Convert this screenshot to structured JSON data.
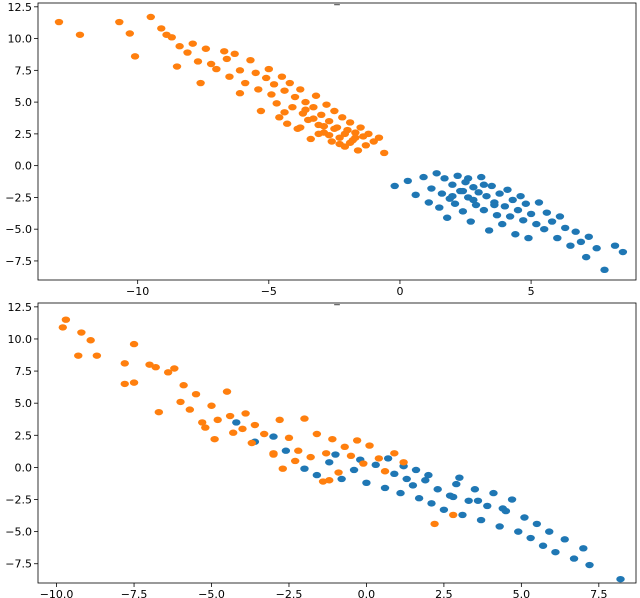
{
  "chart_data": [
    {
      "type": "scatter",
      "title": "_",
      "xlim": [
        -13.8,
        9.0
      ],
      "ylim": [
        -9.0,
        12.8
      ],
      "xticks": [
        -10,
        -5,
        0,
        5
      ],
      "xtick_labels": [
        "−10",
        "−5",
        "0",
        "5"
      ],
      "yticks": [
        -7.5,
        -5.0,
        -2.5,
        0.0,
        2.5,
        5.0,
        7.5,
        10.0,
        12.5
      ],
      "ytick_labels": [
        "−7.5",
        "−5.0",
        "−2.5",
        "0.0",
        "2.5",
        "5.0",
        "7.5",
        "10.0",
        "12.5"
      ],
      "grid": false,
      "series": [
        {
          "color": "#ff7f0e",
          "points": [
            [
              -13.0,
              11.3
            ],
            [
              -12.2,
              10.3
            ],
            [
              -10.7,
              11.3
            ],
            [
              -10.3,
              10.4
            ],
            [
              -10.1,
              8.6
            ],
            [
              -9.5,
              11.7
            ],
            [
              -9.1,
              10.8
            ],
            [
              -8.9,
              10.3
            ],
            [
              -8.7,
              10.1
            ],
            [
              -8.4,
              9.4
            ],
            [
              -8.5,
              7.8
            ],
            [
              -8.1,
              8.9
            ],
            [
              -7.9,
              9.6
            ],
            [
              -7.7,
              8.2
            ],
            [
              -7.6,
              6.5
            ],
            [
              -7.4,
              9.2
            ],
            [
              -7.2,
              8.0
            ],
            [
              -7.0,
              7.6
            ],
            [
              -6.7,
              9.0
            ],
            [
              -6.6,
              8.4
            ],
            [
              -6.5,
              7.0
            ],
            [
              -6.3,
              8.8
            ],
            [
              -6.1,
              7.5
            ],
            [
              -6.1,
              5.7
            ],
            [
              -5.9,
              6.5
            ],
            [
              -5.7,
              8.3
            ],
            [
              -5.5,
              7.3
            ],
            [
              -5.4,
              6.0
            ],
            [
              -5.3,
              4.3
            ],
            [
              -5.1,
              6.9
            ],
            [
              -5.0,
              7.6
            ],
            [
              -4.9,
              5.6
            ],
            [
              -4.8,
              6.4
            ],
            [
              -4.7,
              4.9
            ],
            [
              -4.6,
              3.8
            ],
            [
              -4.5,
              7.0
            ],
            [
              -4.4,
              5.9
            ],
            [
              -4.3,
              3.3
            ],
            [
              -4.2,
              6.5
            ],
            [
              -4.1,
              4.6
            ],
            [
              -4.0,
              5.4
            ],
            [
              -3.9,
              2.9
            ],
            [
              -3.8,
              6.0
            ],
            [
              -3.7,
              4.1
            ],
            [
              -3.6,
              5.0
            ],
            [
              -3.5,
              3.6
            ],
            [
              -3.4,
              2.1
            ],
            [
              -3.3,
              4.6
            ],
            [
              -3.2,
              5.5
            ],
            [
              -3.1,
              3.2
            ],
            [
              -3.0,
              4.0
            ],
            [
              -2.9,
              2.6
            ],
            [
              -2.8,
              4.8
            ],
            [
              -2.7,
              3.5
            ],
            [
              -2.6,
              1.9
            ],
            [
              -2.5,
              4.3
            ],
            [
              -2.4,
              3.0
            ],
            [
              -2.3,
              2.2
            ],
            [
              -2.2,
              3.8
            ],
            [
              -2.1,
              1.5
            ],
            [
              -2.0,
              2.8
            ],
            [
              -1.9,
              3.4
            ],
            [
              -1.8,
              2.0
            ],
            [
              -1.7,
              2.6
            ],
            [
              -1.6,
              1.2
            ],
            [
              -1.5,
              3.0
            ],
            [
              -1.4,
              2.3
            ],
            [
              -1.3,
              1.6
            ],
            [
              -1.2,
              2.5
            ],
            [
              -1.0,
              1.9
            ],
            [
              -0.8,
              2.2
            ],
            [
              -0.6,
              1.0
            ],
            [
              -3.6,
              4.4
            ],
            [
              -3.3,
              3.7
            ],
            [
              -3.1,
              2.5
            ],
            [
              -2.9,
              3.1
            ],
            [
              -2.7,
              2.4
            ],
            [
              -2.5,
              2.9
            ],
            [
              -2.3,
              1.7
            ],
            [
              -2.1,
              2.5
            ],
            [
              -1.9,
              1.8
            ],
            [
              -1.7,
              2.2
            ],
            [
              -3.8,
              3.0
            ],
            [
              -4.4,
              4.2
            ]
          ]
        },
        {
          "color": "#1f77b4",
          "points": [
            [
              -0.2,
              -1.6
            ],
            [
              0.3,
              -1.2
            ],
            [
              0.6,
              -2.3
            ],
            [
              0.9,
              -0.9
            ],
            [
              1.1,
              -2.9
            ],
            [
              1.2,
              -1.8
            ],
            [
              1.4,
              -0.6
            ],
            [
              1.5,
              -3.3
            ],
            [
              1.6,
              -2.2
            ],
            [
              1.7,
              -1.0
            ],
            [
              1.8,
              -4.1
            ],
            [
              1.9,
              -2.6
            ],
            [
              2.0,
              -1.5
            ],
            [
              2.1,
              -3.0
            ],
            [
              2.2,
              -0.8
            ],
            [
              2.3,
              -2.0
            ],
            [
              2.4,
              -3.6
            ],
            [
              2.5,
              -1.3
            ],
            [
              2.6,
              -2.5
            ],
            [
              2.7,
              -4.4
            ],
            [
              2.8,
              -1.7
            ],
            [
              2.9,
              -3.1
            ],
            [
              3.0,
              -2.1
            ],
            [
              3.1,
              -0.9
            ],
            [
              3.2,
              -3.5
            ],
            [
              3.3,
              -2.4
            ],
            [
              3.4,
              -5.1
            ],
            [
              3.5,
              -1.6
            ],
            [
              3.6,
              -2.9
            ],
            [
              3.7,
              -3.9
            ],
            [
              3.8,
              -2.2
            ],
            [
              3.9,
              -4.6
            ],
            [
              4.0,
              -3.2
            ],
            [
              4.1,
              -1.9
            ],
            [
              4.2,
              -4.0
            ],
            [
              4.3,
              -2.7
            ],
            [
              4.4,
              -5.4
            ],
            [
              4.5,
              -3.5
            ],
            [
              4.6,
              -2.4
            ],
            [
              4.7,
              -4.3
            ],
            [
              4.8,
              -3.0
            ],
            [
              4.9,
              -5.7
            ],
            [
              5.0,
              -3.8
            ],
            [
              5.2,
              -4.6
            ],
            [
              5.3,
              -2.9
            ],
            [
              5.5,
              -5.0
            ],
            [
              5.6,
              -3.7
            ],
            [
              5.8,
              -4.4
            ],
            [
              6.0,
              -5.7
            ],
            [
              6.1,
              -4.0
            ],
            [
              6.3,
              -4.9
            ],
            [
              6.5,
              -6.3
            ],
            [
              6.7,
              -5.2
            ],
            [
              6.9,
              -6.0
            ],
            [
              7.1,
              -7.2
            ],
            [
              7.2,
              -5.6
            ],
            [
              7.5,
              -6.5
            ],
            [
              7.8,
              -8.2
            ],
            [
              8.2,
              -6.3
            ],
            [
              8.5,
              -6.8
            ],
            [
              2.4,
              -2.0
            ],
            [
              2.8,
              -2.7
            ],
            [
              3.2,
              -1.5
            ],
            [
              3.6,
              -3.1
            ],
            [
              2.0,
              -2.4
            ],
            [
              2.6,
              -1.0
            ]
          ]
        }
      ]
    },
    {
      "type": "scatter",
      "title": "_",
      "xlim": [
        -10.6,
        8.7
      ],
      "ylim": [
        -9.0,
        12.8
      ],
      "xticks": [
        -10.0,
        -7.5,
        -5.0,
        -2.5,
        0.0,
        2.5,
        5.0,
        7.5
      ],
      "xtick_labels": [
        "−10.0",
        "−7.5",
        "−5.0",
        "−2.5",
        "0.0",
        "2.5",
        "5.0",
        "7.5"
      ],
      "yticks": [
        -7.5,
        -5.0,
        -2.5,
        0.0,
        2.5,
        5.0,
        7.5,
        10.0,
        12.5
      ],
      "ytick_labels": [
        "−7.5",
        "−5.0",
        "−2.5",
        "0.0",
        "2.5",
        "5.0",
        "7.5",
        "10.0",
        "12.5"
      ],
      "grid": false,
      "series": [
        {
          "color": "#1f77b4",
          "points": [
            [
              -2.0,
              -0.1
            ],
            [
              -1.6,
              -0.6
            ],
            [
              -1.2,
              0.4
            ],
            [
              -0.8,
              -0.9
            ],
            [
              -0.4,
              -0.2
            ],
            [
              0.0,
              -1.2
            ],
            [
              0.3,
              0.2
            ],
            [
              0.6,
              -1.6
            ],
            [
              0.9,
              -0.5
            ],
            [
              1.1,
              -2.0
            ],
            [
              1.3,
              -0.9
            ],
            [
              1.5,
              -1.4
            ],
            [
              1.7,
              -2.4
            ],
            [
              1.9,
              -1.0
            ],
            [
              2.1,
              -2.8
            ],
            [
              2.3,
              -1.7
            ],
            [
              2.5,
              -3.3
            ],
            [
              2.7,
              -2.2
            ],
            [
              2.9,
              -1.3
            ],
            [
              3.1,
              -3.7
            ],
            [
              3.3,
              -2.6
            ],
            [
              3.5,
              -1.7
            ],
            [
              3.7,
              -4.1
            ],
            [
              3.9,
              -3.0
            ],
            [
              4.1,
              -2.0
            ],
            [
              4.3,
              -4.6
            ],
            [
              4.5,
              -3.4
            ],
            [
              4.7,
              -2.5
            ],
            [
              4.9,
              -5.0
            ],
            [
              5.1,
              -3.9
            ],
            [
              5.3,
              -5.5
            ],
            [
              5.5,
              -4.4
            ],
            [
              5.7,
              -6.1
            ],
            [
              5.9,
              -5.0
            ],
            [
              6.1,
              -6.6
            ],
            [
              6.4,
              -5.6
            ],
            [
              6.7,
              -7.1
            ],
            [
              7.0,
              -6.3
            ],
            [
              7.2,
              -7.6
            ],
            [
              8.2,
              -8.7
            ],
            [
              0.7,
              0.7
            ],
            [
              1.2,
              0.1
            ],
            [
              2.0,
              -0.6
            ],
            [
              2.8,
              -2.3
            ],
            [
              3.6,
              -2.6
            ],
            [
              4.4,
              -3.2
            ],
            [
              3.0,
              -0.8
            ],
            [
              1.6,
              -0.2
            ],
            [
              -3.0,
              2.4
            ],
            [
              -2.6,
              1.3
            ],
            [
              -4.2,
              3.5
            ],
            [
              -3.6,
              2.0
            ],
            [
              -1.0,
              1.0
            ],
            [
              -0.2,
              0.6
            ]
          ]
        },
        {
          "color": "#ff7f0e",
          "points": [
            [
              -9.7,
              11.5
            ],
            [
              -9.8,
              10.9
            ],
            [
              -9.3,
              8.7
            ],
            [
              -9.2,
              10.5
            ],
            [
              -8.9,
              9.9
            ],
            [
              -8.7,
              8.7
            ],
            [
              -7.8,
              8.1
            ],
            [
              -7.8,
              6.5
            ],
            [
              -7.5,
              9.6
            ],
            [
              -7.5,
              6.6
            ],
            [
              -7.0,
              8.0
            ],
            [
              -6.8,
              7.8
            ],
            [
              -6.7,
              4.3
            ],
            [
              -6.4,
              7.4
            ],
            [
              -6.2,
              7.7
            ],
            [
              -5.9,
              6.4
            ],
            [
              -5.7,
              4.5
            ],
            [
              -5.5,
              5.7
            ],
            [
              -5.3,
              3.5
            ],
            [
              -5.0,
              4.8
            ],
            [
              -4.9,
              2.2
            ],
            [
              -4.8,
              3.7
            ],
            [
              -4.5,
              5.9
            ],
            [
              -4.4,
              4.0
            ],
            [
              -4.3,
              2.7
            ],
            [
              -4.0,
              3.0
            ],
            [
              -3.9,
              4.2
            ],
            [
              -3.7,
              1.9
            ],
            [
              -3.6,
              3.3
            ],
            [
              -3.3,
              2.6
            ],
            [
              -3.0,
              1.1
            ],
            [
              -2.8,
              3.7
            ],
            [
              -2.7,
              -0.1
            ],
            [
              -2.5,
              2.3
            ],
            [
              -2.2,
              1.3
            ],
            [
              -2.0,
              3.8
            ],
            [
              -1.8,
              0.8
            ],
            [
              -1.6,
              2.6
            ],
            [
              -1.3,
              1.1
            ],
            [
              -1.1,
              2.2
            ],
            [
              -0.9,
              -0.4
            ],
            [
              -0.7,
              1.6
            ],
            [
              -0.5,
              0.9
            ],
            [
              -0.3,
              2.1
            ],
            [
              -0.1,
              0.3
            ],
            [
              0.1,
              1.7
            ],
            [
              0.4,
              0.7
            ],
            [
              0.6,
              -0.3
            ],
            [
              0.9,
              1.1
            ],
            [
              1.2,
              0.4
            ],
            [
              2.2,
              -4.4
            ],
            [
              2.8,
              -3.7
            ],
            [
              -1.4,
              -1.1
            ],
            [
              -1.2,
              -1.0
            ],
            [
              -3.0,
              1.0
            ],
            [
              -2.3,
              0.5
            ],
            [
              -6.0,
              5.1
            ],
            [
              -5.2,
              3.1
            ]
          ]
        }
      ]
    }
  ]
}
